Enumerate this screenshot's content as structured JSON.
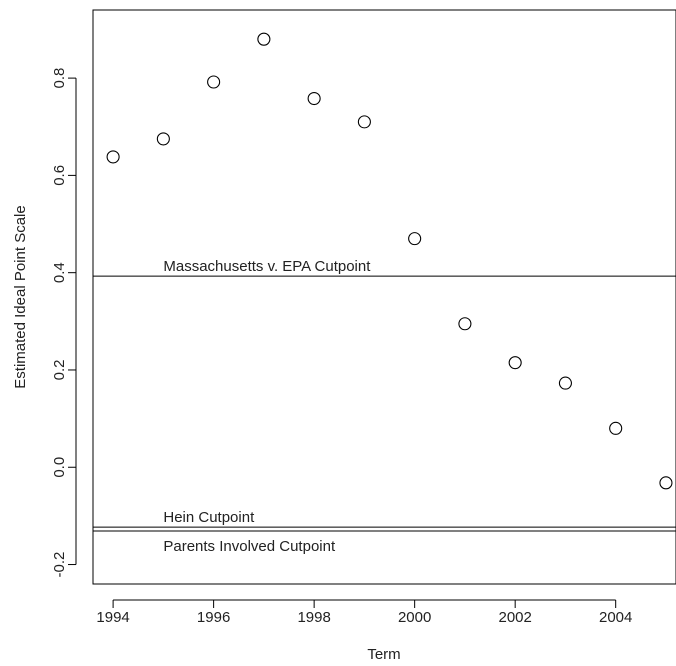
{
  "chart_data": {
    "type": "scatter",
    "title": "",
    "xlabel": "Term",
    "ylabel": "Estimated Ideal Point Scale",
    "xlim": [
      1993.6,
      2005.2
    ],
    "ylim": [
      -0.24,
      0.94
    ],
    "xticks": [
      1994,
      1996,
      1998,
      2000,
      2002,
      2004
    ],
    "yticks": [
      -0.2,
      0.0,
      0.2,
      0.4,
      0.6,
      0.8
    ],
    "ytick_labels": [
      "-0.2",
      "0.0",
      "0.2",
      "0.4",
      "0.6",
      "0.8"
    ],
    "grid": false,
    "points": [
      {
        "x": 1994,
        "y": 0.638
      },
      {
        "x": 1995,
        "y": 0.675
      },
      {
        "x": 1996,
        "y": 0.792
      },
      {
        "x": 1997,
        "y": 0.88
      },
      {
        "x": 1998,
        "y": 0.758
      },
      {
        "x": 1999,
        "y": 0.71
      },
      {
        "x": 2000,
        "y": 0.47
      },
      {
        "x": 2001,
        "y": 0.295
      },
      {
        "x": 2002,
        "y": 0.215
      },
      {
        "x": 2003,
        "y": 0.173
      },
      {
        "x": 2004,
        "y": 0.08
      },
      {
        "x": 2005,
        "y": -0.032
      }
    ],
    "reference_lines": [
      {
        "y": 0.393,
        "label": "Massachusetts v. EPA Cutpoint",
        "label_position": "above"
      },
      {
        "y": -0.123,
        "label": "Hein Cutpoint",
        "label_position": "above"
      },
      {
        "y": -0.131,
        "label": "Parents Involved Cutpoint",
        "label_position": "below"
      }
    ]
  }
}
